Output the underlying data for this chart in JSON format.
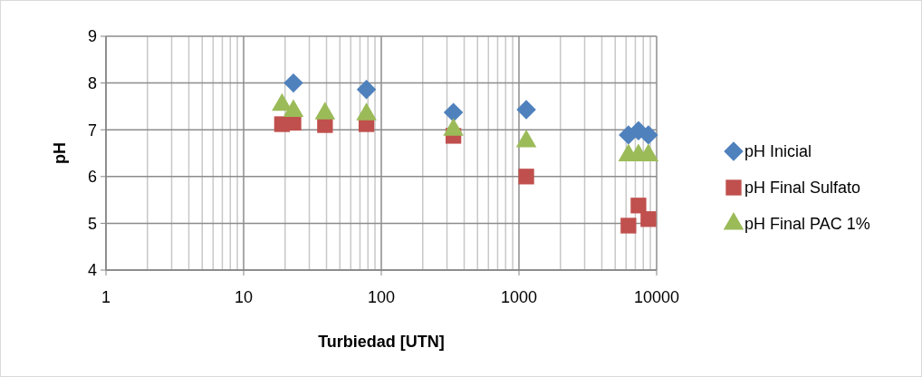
{
  "chart_data": {
    "type": "scatter",
    "xlabel": "Turbiedad [UTN]",
    "ylabel": "pH",
    "log": "x",
    "xlim": [
      1,
      10000
    ],
    "xticks": [
      1,
      10,
      100,
      1000,
      10000
    ],
    "ylim": [
      4,
      9
    ],
    "yticks": [
      4,
      5,
      6,
      7,
      8,
      9
    ],
    "grid": true,
    "legend": "right",
    "x": [
      19,
      23,
      39,
      78,
      334,
      1130,
      6240,
      7380,
      8710
    ],
    "series": [
      {
        "name": "pH Inicial",
        "color": "#4f81bd",
        "marker": "diamond",
        "values": [
          null,
          8.0,
          null,
          7.86,
          7.37,
          7.43,
          6.89,
          6.98,
          6.89
        ]
      },
      {
        "name": "pH Final Sulfato",
        "color": "#c0504d",
        "marker": "square",
        "values": [
          7.12,
          7.15,
          7.1,
          7.12,
          6.87,
          6.0,
          4.95,
          5.38,
          5.09
        ]
      },
      {
        "name": "pH Final PAC 1%",
        "color": "#9bbb59",
        "marker": "triangle",
        "values": [
          7.53,
          7.4,
          7.35,
          7.33,
          7.0,
          6.75,
          6.45,
          6.45,
          6.45
        ]
      }
    ]
  }
}
